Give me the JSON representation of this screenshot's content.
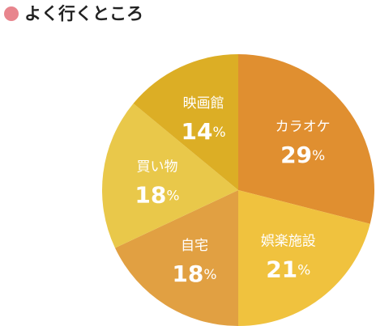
{
  "chart_data": {
    "type": "pie",
    "title": "よく行くところ",
    "categories": [
      "カラオケ",
      "娯楽施設",
      "自宅",
      "買い物",
      "映画館"
    ],
    "values": [
      29,
      21,
      18,
      18,
      14
    ],
    "value_labels": [
      "29%",
      "21%",
      "18%",
      "18%",
      "14%"
    ],
    "colors": [
      "#e08f30",
      "#f0c23e",
      "#e1a042",
      "#e9c84a",
      "#dcae25"
    ],
    "title_marker_color": "#e8858d"
  }
}
